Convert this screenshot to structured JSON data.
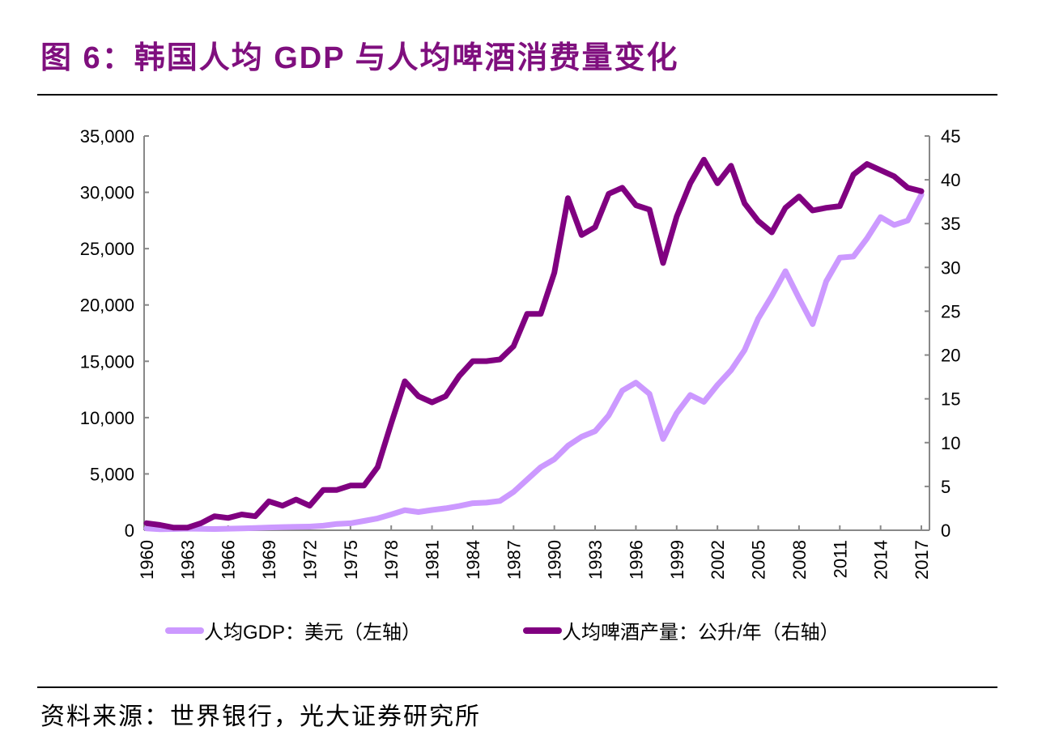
{
  "title": "图 6：韩国人均 GDP 与人均啤酒消费量变化",
  "source": "资料来源：世界银行，光大证券研究所",
  "chart_data": {
    "type": "line",
    "title": "",
    "xlabel": "",
    "ylabel_left": "",
    "ylabel_right": "",
    "ylim_left": [
      0,
      35000
    ],
    "ylim_right": [
      0,
      45
    ],
    "yticks_left": [
      "0",
      "5,000",
      "10,000",
      "15,000",
      "20,000",
      "25,000",
      "30,000",
      "35,000"
    ],
    "yticks_right": [
      "0",
      "5",
      "10",
      "15",
      "20",
      "25",
      "30",
      "35",
      "40",
      "45"
    ],
    "xticks": [
      "1960",
      "1963",
      "1966",
      "1969",
      "1972",
      "1975",
      "1978",
      "1981",
      "1984",
      "1987",
      "1990",
      "1993",
      "1996",
      "1999",
      "2002",
      "2005",
      "2008",
      "2011",
      "2014",
      "2017"
    ],
    "grid": false,
    "legend_position": "bottom",
    "x": [
      1960,
      1961,
      1962,
      1963,
      1964,
      1965,
      1966,
      1967,
      1968,
      1969,
      1970,
      1971,
      1972,
      1973,
      1974,
      1975,
      1976,
      1977,
      1978,
      1979,
      1980,
      1981,
      1982,
      1983,
      1984,
      1985,
      1986,
      1987,
      1988,
      1989,
      1990,
      1991,
      1992,
      1993,
      1994,
      1995,
      1996,
      1997,
      1998,
      1999,
      2000,
      2001,
      2002,
      2003,
      2004,
      2005,
      2006,
      2007,
      2008,
      2009,
      2010,
      2011,
      2012,
      2013,
      2014,
      2015,
      2016,
      2017
    ],
    "series": [
      {
        "name": "人均GDP：美元（左轴）",
        "axis": "left",
        "color": "#cc99ff",
        "values": [
          160,
          95,
          105,
          145,
          125,
          110,
          135,
          160,
          200,
          245,
          280,
          300,
          325,
          405,
          560,
          615,
          830,
          1050,
          1400,
          1780,
          1620,
          1800,
          1950,
          2150,
          2400,
          2450,
          2600,
          3400,
          4500,
          5600,
          6300,
          7500,
          8300,
          8800,
          10200,
          12400,
          13100,
          12100,
          8100,
          10400,
          12000,
          11400,
          12900,
          14200,
          16000,
          18800,
          20800,
          23000,
          20600,
          18300,
          22100,
          24200,
          24300,
          25900,
          27800,
          27100,
          27500,
          29800
        ]
      },
      {
        "name": "人均啤酒产量：公升/年（右轴）",
        "axis": "right",
        "color": "#800080",
        "values": [
          0.8,
          0.6,
          0.3,
          0.3,
          0.8,
          1.6,
          1.4,
          1.8,
          1.6,
          3.3,
          2.8,
          3.5,
          2.8,
          4.6,
          4.6,
          5.1,
          5.1,
          7.2,
          12.2,
          17.0,
          15.3,
          14.6,
          15.3,
          17.6,
          19.3,
          19.3,
          19.5,
          21.0,
          24.7,
          24.7,
          29.4,
          37.9,
          33.7,
          34.6,
          38.4,
          39.1,
          37.1,
          36.6,
          30.5,
          35.8,
          39.6,
          42.3,
          39.6,
          41.6,
          37.3,
          35.3,
          34.0,
          36.8,
          38.1,
          36.5,
          36.8,
          37.0,
          40.6,
          41.8,
          41.1,
          40.4,
          39.1,
          38.7
        ]
      }
    ]
  }
}
